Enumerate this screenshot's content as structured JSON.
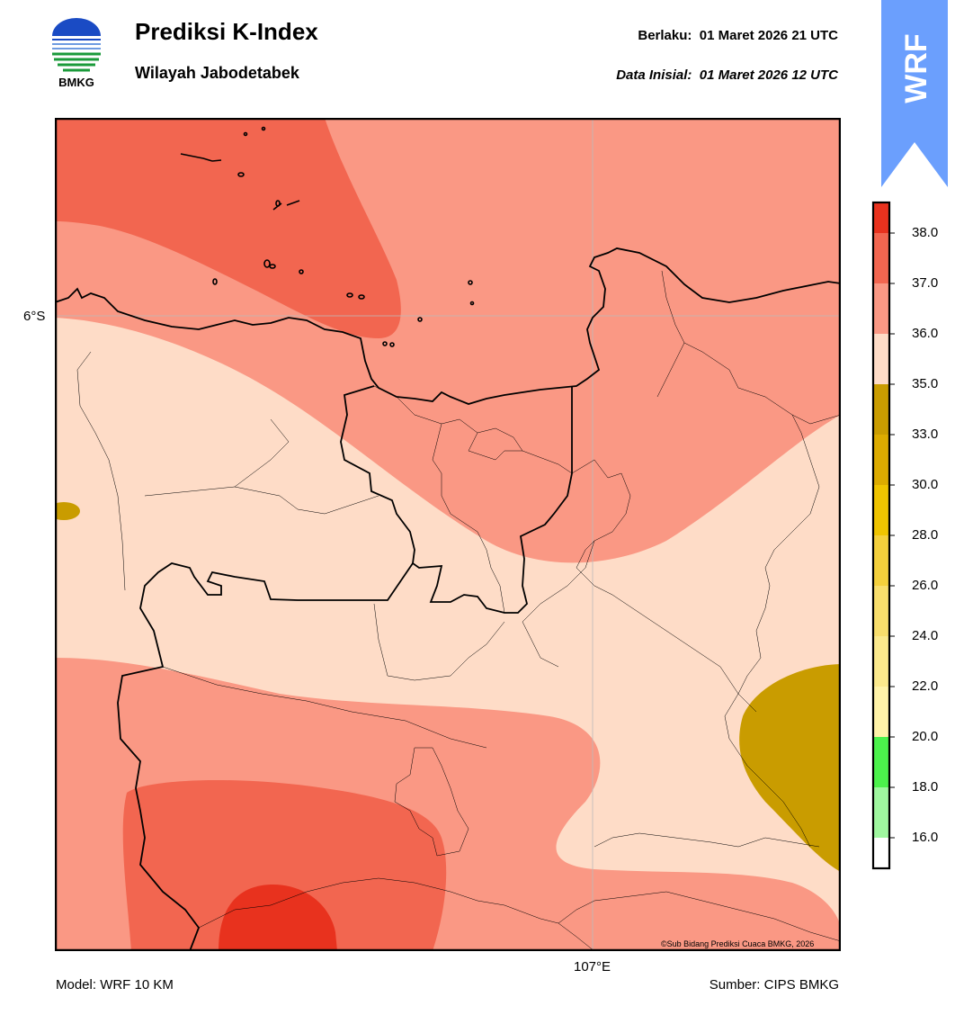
{
  "header": {
    "title": "Prediksi K-Index",
    "subtitle": "Wilayah Jabodetabek",
    "valid_label": "Berlaku:",
    "valid_value": "01 Maret 2026 21 UTC",
    "init_label": "Data Inisial:",
    "init_value": "01 Maret 2026 12 UTC"
  },
  "logo": {
    "text": "BMKG",
    "icon": "bmkg-logo-icon"
  },
  "ribbon": {
    "text": "WRF",
    "color": "#6b9ffd"
  },
  "map": {
    "lat_label": "6°S",
    "lon_label": "107°E",
    "copyright": "©Sub Bidang Prediksi Cuaca BMKG, 2026",
    "colors": {
      "c35_36": "#fedcc7",
      "c36_37": "#fa9884",
      "c37_38": "#f26650",
      "c38_up": "#e8321e",
      "c33_35": "#c99c00"
    }
  },
  "footer": {
    "model": "Model: WRF 10 KM",
    "source": "Sumber: CIPS BMKG"
  },
  "colorbar": {
    "ticks": [
      "38.0",
      "37.0",
      "36.0",
      "35.0",
      "33.0",
      "30.0",
      "28.0",
      "26.0",
      "24.0",
      "22.0",
      "20.0",
      "18.0",
      "16.0"
    ],
    "colors": [
      "#e8321e",
      "#f26650",
      "#fa9884",
      "#fedcc7",
      "#c99c00",
      "#dcab00",
      "#efc400",
      "#f4d03c",
      "#f8de6c",
      "#fbe98c",
      "#fff3a8",
      "#4cf24c",
      "#9ff79f",
      "#ffffff"
    ]
  }
}
